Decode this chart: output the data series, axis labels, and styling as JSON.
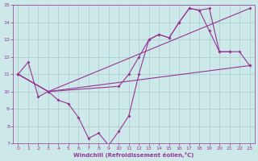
{
  "xlabel": "Windchill (Refroidissement éolien,°C)",
  "background_color": "#cce8e8",
  "line_color": "#993399",
  "grid_color": "#aacccc",
  "xlim": [
    -0.5,
    23.5
  ],
  "ylim": [
    7,
    15
  ],
  "xticks": [
    0,
    1,
    2,
    3,
    4,
    5,
    6,
    7,
    8,
    9,
    10,
    11,
    12,
    13,
    14,
    15,
    16,
    17,
    18,
    19,
    20,
    21,
    22,
    23
  ],
  "yticks": [
    7,
    8,
    9,
    10,
    11,
    12,
    13,
    14,
    15
  ],
  "line1_x": [
    0,
    1,
    2,
    3,
    4,
    5,
    6,
    7,
    8,
    9,
    10,
    11,
    12,
    13,
    14,
    15,
    16,
    17,
    18,
    19,
    20,
    21
  ],
  "line1_y": [
    11.0,
    11.7,
    9.7,
    10.0,
    9.5,
    9.3,
    8.5,
    7.3,
    7.6,
    6.9,
    7.7,
    8.6,
    11.0,
    13.0,
    13.3,
    13.1,
    14.0,
    14.8,
    14.7,
    13.5,
    12.3,
    12.3
  ],
  "line2_x": [
    0,
    3,
    10,
    11,
    12,
    13,
    14,
    15,
    16,
    17,
    18,
    19,
    20,
    21,
    22,
    23
  ],
  "line2_y": [
    11.0,
    10.0,
    10.3,
    11.0,
    12.0,
    13.0,
    13.3,
    13.1,
    14.0,
    14.8,
    14.7,
    14.8,
    12.3,
    12.3,
    12.3,
    11.5
  ],
  "line3_x": [
    0,
    3,
    23
  ],
  "line3_y": [
    11.0,
    10.0,
    11.5
  ],
  "line4_x": [
    0,
    3,
    23
  ],
  "line4_y": [
    11.0,
    10.0,
    14.8
  ]
}
